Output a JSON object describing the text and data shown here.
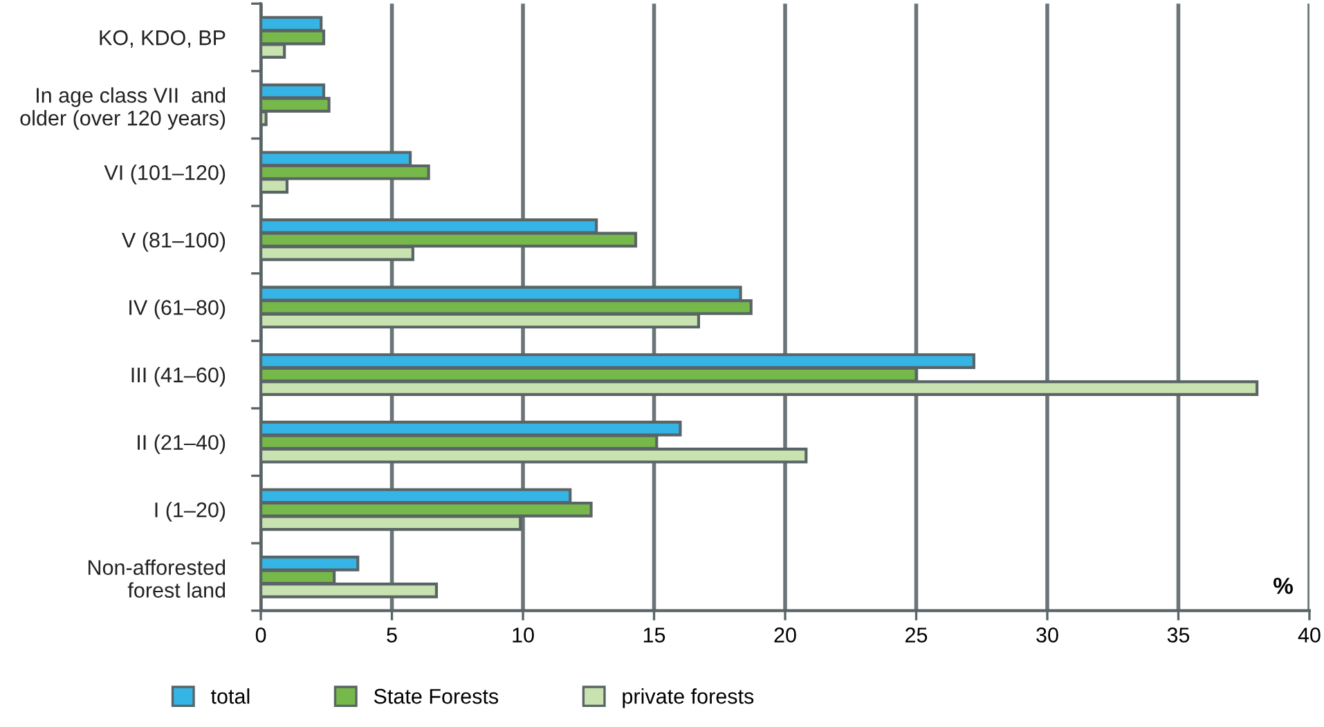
{
  "chart_data": {
    "type": "bar",
    "orientation": "horizontal",
    "categories": [
      "KO, KDO, BP",
      "In age class VII  and\nolder (over 120 years)",
      "VI (101–120)",
      "V (81–100)",
      "IV (61–80)",
      "III (41–60)",
      "II (21–40)",
      "I (1–20)",
      "Non-afforested\nforest land"
    ],
    "series": [
      {
        "name": "total",
        "color": "#35b4e6",
        "values": [
          2.3,
          2.4,
          5.7,
          12.8,
          18.3,
          27.2,
          16.0,
          11.8,
          3.7
        ]
      },
      {
        "name": "State Forests",
        "color": "#76b94a",
        "values": [
          2.4,
          2.6,
          6.4,
          14.3,
          18.7,
          25.0,
          15.1,
          12.6,
          2.8
        ]
      },
      {
        "name": "private forests",
        "color": "#c8e2b0",
        "values": [
          0.9,
          0.2,
          1.0,
          5.8,
          16.7,
          38.0,
          20.8,
          9.9,
          6.7
        ]
      }
    ],
    "xlim": [
      0,
      40
    ],
    "xticks": [
      0,
      5,
      10,
      15,
      20,
      25,
      30,
      35,
      40
    ],
    "grid": "x",
    "legend": "bottom",
    "annotations": [
      "%"
    ]
  }
}
